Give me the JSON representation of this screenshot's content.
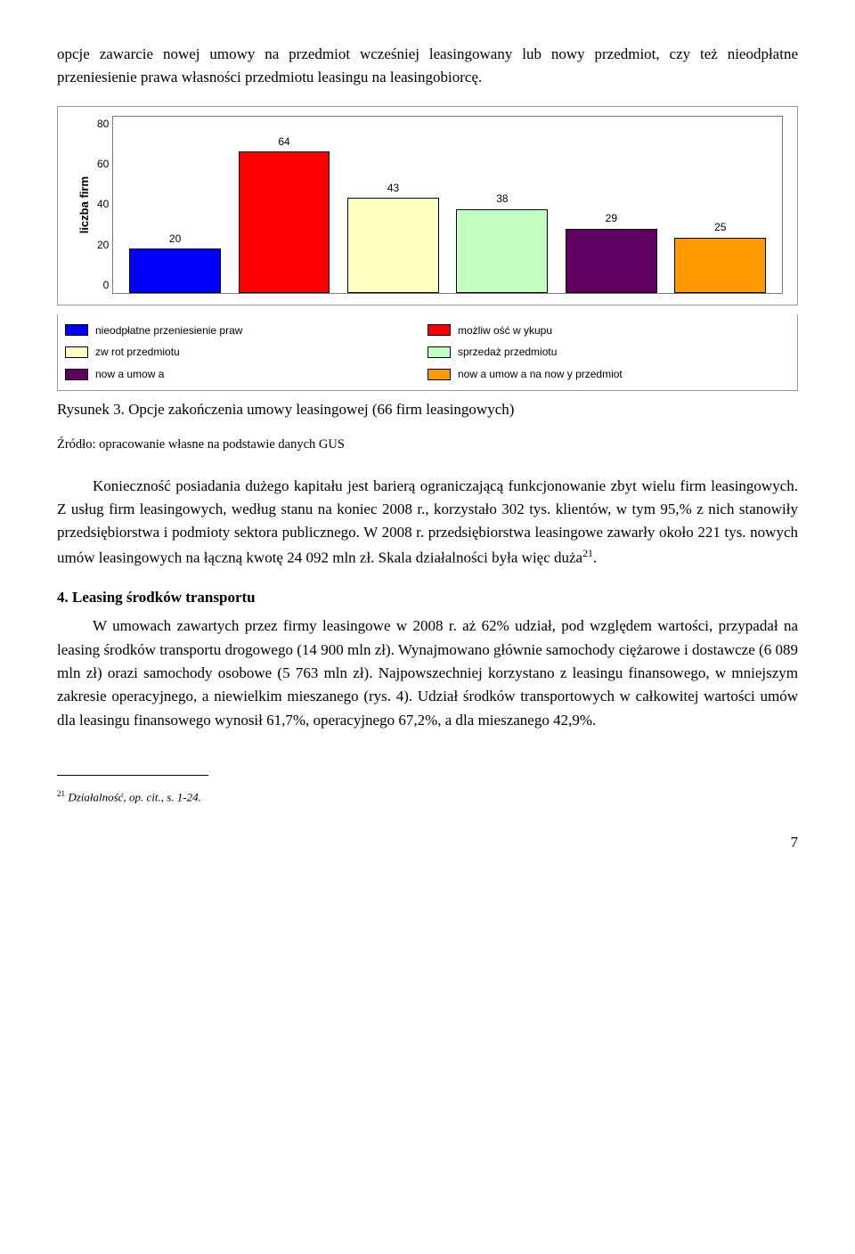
{
  "intro_para": "opcje zawarcie nowej umowy na przedmiot wcześniej leasingowany lub nowy przedmiot, czy też nieodpłatne przeniesienie prawa własności przedmiotu leasingu na leasingobiorcę.",
  "chart": {
    "type": "bar",
    "y_axis_label": "liczba firm",
    "y_ticks": [
      "80",
      "60",
      "40",
      "20",
      "0"
    ],
    "ylim": [
      0,
      80
    ],
    "background_color": "#ffffff",
    "border_color": "#7a7a7a",
    "label_fontsize": 13,
    "tick_fontsize": 12,
    "bars": [
      {
        "value": 20,
        "color": "#0000ff"
      },
      {
        "value": 64,
        "color": "#ff0000"
      },
      {
        "value": 43,
        "color": "#ffffc0"
      },
      {
        "value": 38,
        "color": "#c0ffc0"
      },
      {
        "value": 29,
        "color": "#600060"
      },
      {
        "value": 25,
        "color": "#ff9900"
      }
    ],
    "legend": [
      {
        "label": "nieodpłatne przeniesienie praw",
        "color": "#0000ff"
      },
      {
        "label": "możliw ość w ykupu",
        "color": "#ff0000"
      },
      {
        "label": "zw rot przedmiotu",
        "color": "#ffffc0"
      },
      {
        "label": "sprzedaż przedmiotu",
        "color": "#c0ffc0"
      },
      {
        "label": "now a umow a",
        "color": "#600060"
      },
      {
        "label": "now a umow a na now y przedmiot",
        "color": "#ff9900"
      }
    ]
  },
  "fig_caption": "Rysunek 3. Opcje zakończenia umowy leasingowej (66 firm leasingowych)",
  "fig_source": "Źródło: opracowanie własne na podstawie danych GUS",
  "body_para_a": "Konieczność posiadania dużego kapitału jest barierą ograniczającą funkcjonowanie zbyt wielu firm leasingowych. Z usług firm leasingowych, według stanu na koniec 2008 r., korzystało 302 tys. klientów, w tym 95,% z nich stanowiły przedsiębiorstwa i podmioty sektora publicznego. W 2008 r. przedsiębiorstwa leasingowe zawarły około 221 tys. nowych umów leasingowych na łączną kwotę 24 092 mln zł. Skala działalności była więc duża",
  "body_para_a_sup": "21",
  "body_para_a_tail": ".",
  "section4_head": "4. Leasing środków transportu",
  "section4_para": "W umowach zawartych przez firmy leasingowe w 2008 r. aż 62% udział, pod względem wartości, przypadał na leasing środków transportu drogowego (14 900 mln zł). Wynajmowano głównie samochody ciężarowe i dostawcze (6 089 mln zł) orazi samochody osobowe (5 763 mln zł). Najpowszechniej korzystano z leasingu finansowego, w mniejszym zakresie operacyjnego, a niewielkim mieszanego (rys. 4). Udział środków transportowych w całkowitej wartości umów dla leasingu finansowego wynosił 61,7%, operacyjnego 67,2%, a dla mieszanego 42,9%.",
  "footnote_num": "21",
  "footnote_text": " Działalność, op. cit., s. 1-24.",
  "page_number": "7"
}
